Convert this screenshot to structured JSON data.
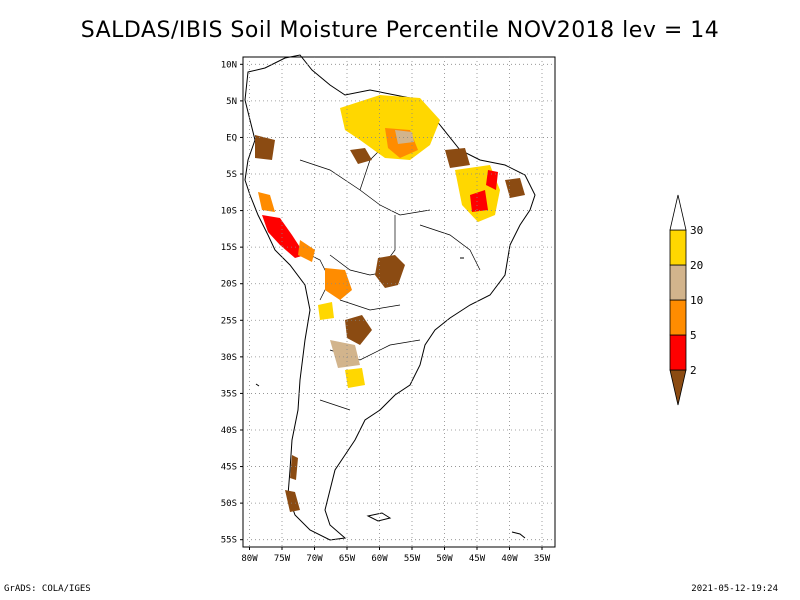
{
  "title": "SALDAS/IBIS Soil Moisture Percentile NOV2018 lev = 14",
  "map": {
    "lat_ticks": [
      "10N",
      "5N",
      "EQ",
      "5S",
      "10S",
      "15S",
      "20S",
      "25S",
      "30S",
      "35S",
      "40S",
      "45S",
      "50S",
      "55S"
    ],
    "lon_ticks": [
      "80W",
      "75W",
      "70W",
      "65W",
      "60W",
      "55W",
      "50W",
      "45W",
      "40W",
      "35W"
    ],
    "lat_range": [
      -56,
      11
    ],
    "lon_range": [
      -81,
      -33
    ],
    "grid": true,
    "grid_style": "dotted"
  },
  "legend": {
    "orientation": "vertical",
    "placement": "right",
    "bins": [
      {
        "color": "#8b4b12",
        "bound": "2"
      },
      {
        "color": "#ff0000",
        "bound": "5"
      },
      {
        "color": "#ff8c00",
        "bound": "10"
      },
      {
        "color": "#d2b48c",
        "bound": "20"
      },
      {
        "color": "#ffd700",
        "bound": "30"
      },
      {
        "color": "#ffffff",
        "bound": ""
      }
    ]
  },
  "footer": {
    "left": "GrADS: COLA/IGES",
    "right": "2021-05-12-19:24"
  }
}
